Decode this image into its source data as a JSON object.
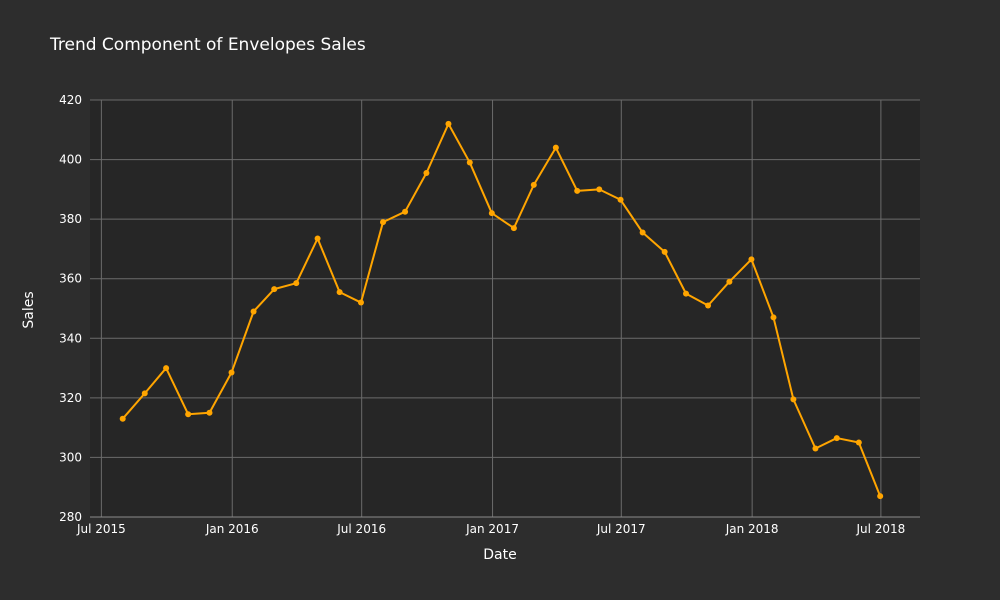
{
  "chart_data": {
    "type": "line",
    "title": "Trend Component of Envelopes Sales",
    "xlabel": "Date",
    "ylabel": "Sales",
    "ylim": [
      280,
      420
    ],
    "xlim": [
      "2015-06-15",
      "2018-08-25"
    ],
    "yticks": [
      280,
      300,
      320,
      340,
      360,
      380,
      400,
      420
    ],
    "xticks": [
      {
        "date": "2015-07-01",
        "label": "Jul 2015"
      },
      {
        "date": "2016-01-01",
        "label": "Jan 2016"
      },
      {
        "date": "2016-07-01",
        "label": "Jul 2016"
      },
      {
        "date": "2017-01-01",
        "label": "Jan 2017"
      },
      {
        "date": "2017-07-01",
        "label": "Jul 2017"
      },
      {
        "date": "2018-01-01",
        "label": "Jan 2018"
      },
      {
        "date": "2018-07-01",
        "label": "Jul 2018"
      }
    ],
    "grid": true,
    "series": [
      {
        "color": "#FFA500",
        "points": [
          {
            "x": "2015-07-31",
            "y": 313.0
          },
          {
            "x": "2015-08-31",
            "y": 321.5
          },
          {
            "x": "2015-09-30",
            "y": 330.0
          },
          {
            "x": "2015-10-31",
            "y": 314.5
          },
          {
            "x": "2015-11-30",
            "y": 315.0
          },
          {
            "x": "2015-12-31",
            "y": 328.5
          },
          {
            "x": "2016-01-31",
            "y": 349.0
          },
          {
            "x": "2016-02-29",
            "y": 356.5
          },
          {
            "x": "2016-03-31",
            "y": 358.5
          },
          {
            "x": "2016-04-30",
            "y": 373.5
          },
          {
            "x": "2016-05-31",
            "y": 355.5
          },
          {
            "x": "2016-06-30",
            "y": 352.0
          },
          {
            "x": "2016-07-31",
            "y": 379.0
          },
          {
            "x": "2016-08-31",
            "y": 382.5
          },
          {
            "x": "2016-09-30",
            "y": 395.5
          },
          {
            "x": "2016-10-31",
            "y": 412.0
          },
          {
            "x": "2016-11-30",
            "y": 399.0
          },
          {
            "x": "2016-12-31",
            "y": 382.0
          },
          {
            "x": "2017-01-31",
            "y": 377.0
          },
          {
            "x": "2017-02-28",
            "y": 391.5
          },
          {
            "x": "2017-03-31",
            "y": 404.0
          },
          {
            "x": "2017-04-30",
            "y": 389.5
          },
          {
            "x": "2017-05-31",
            "y": 390.0
          },
          {
            "x": "2017-06-30",
            "y": 386.5
          },
          {
            "x": "2017-07-31",
            "y": 375.5
          },
          {
            "x": "2017-08-31",
            "y": 369.0
          },
          {
            "x": "2017-09-30",
            "y": 355.0
          },
          {
            "x": "2017-10-31",
            "y": 351.0
          },
          {
            "x": "2017-11-30",
            "y": 359.0
          },
          {
            "x": "2017-12-31",
            "y": 366.5
          },
          {
            "x": "2018-01-31",
            "y": 347.0
          },
          {
            "x": "2018-02-28",
            "y": 319.5
          },
          {
            "x": "2018-03-31",
            "y": 303.0
          },
          {
            "x": "2018-04-30",
            "y": 306.5
          },
          {
            "x": "2018-05-31",
            "y": 305.0
          },
          {
            "x": "2018-06-30",
            "y": 287.0
          }
        ]
      }
    ]
  }
}
